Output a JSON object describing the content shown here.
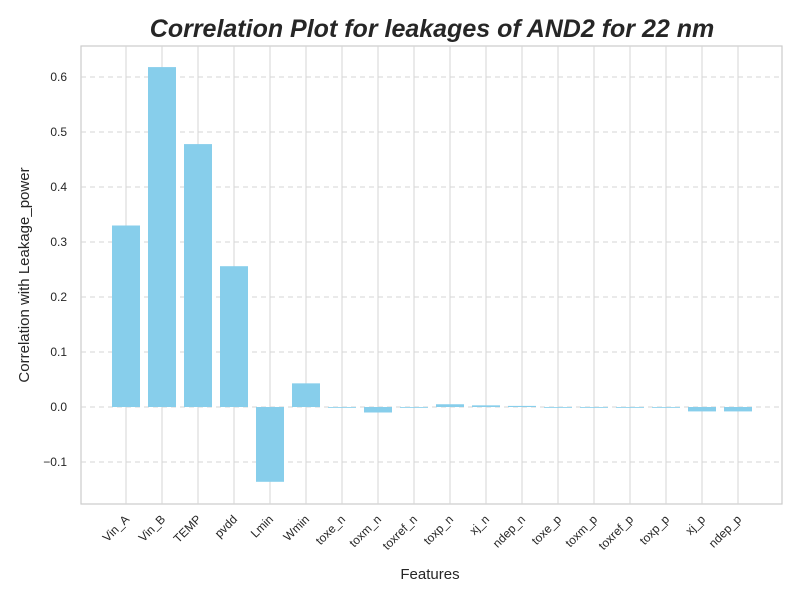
{
  "chart_data": {
    "type": "bar",
    "title": "Correlation Plot for leakages of AND2 for 22 nm",
    "xlabel": "Features",
    "ylabel": "Correlation with Leakage_power",
    "categories": [
      "Vin_A",
      "Vin_B",
      "TEMP",
      "pvdd",
      "Lmin",
      "Wmin",
      "toxe_n",
      "toxm_n",
      "toxref_n",
      "toxp_n",
      "xj_n",
      "ndep_n",
      "toxe_p",
      "toxm_p",
      "toxref_p",
      "toxp_p",
      "xj_p",
      "ndep_p"
    ],
    "values": [
      0.33,
      0.618,
      0.478,
      0.256,
      -0.136,
      0.043,
      0.0,
      -0.01,
      0.0,
      0.005,
      0.003,
      0.002,
      0.0,
      0.0,
      0.0,
      0.0,
      -0.008,
      -0.008
    ],
    "yticks": [
      "0.6",
      "0.5",
      "0.4",
      "0.3",
      "0.2",
      "0.1",
      "0.0",
      "−0.1"
    ],
    "ylim": [
      -0.17,
      0.65
    ],
    "grid": true,
    "bar_color": "#87CEEB",
    "legend": "none"
  }
}
